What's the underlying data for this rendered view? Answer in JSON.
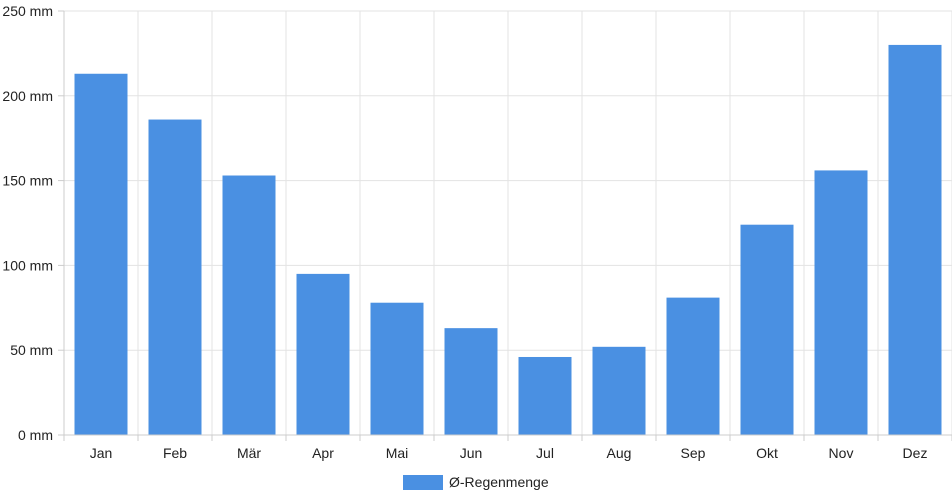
{
  "chart_data": {
    "type": "bar",
    "categories": [
      "Jan",
      "Feb",
      "Mär",
      "Apr",
      "Mai",
      "Jun",
      "Jul",
      "Aug",
      "Sep",
      "Okt",
      "Nov",
      "Dez"
    ],
    "series": [
      {
        "name": "Ø-Regenmenge",
        "values": [
          213,
          186,
          153,
          95,
          78,
          63,
          46,
          52,
          81,
          124,
          156,
          230
        ],
        "color": "#4a90e2"
      }
    ],
    "title": "",
    "xlabel": "",
    "ylabel": "",
    "ylim": [
      0,
      250
    ],
    "yticks": [
      "0 mm",
      "50 mm",
      "100 mm",
      "150 mm",
      "200 mm",
      "250 mm"
    ],
    "grid": true,
    "legend_position": "bottom"
  }
}
